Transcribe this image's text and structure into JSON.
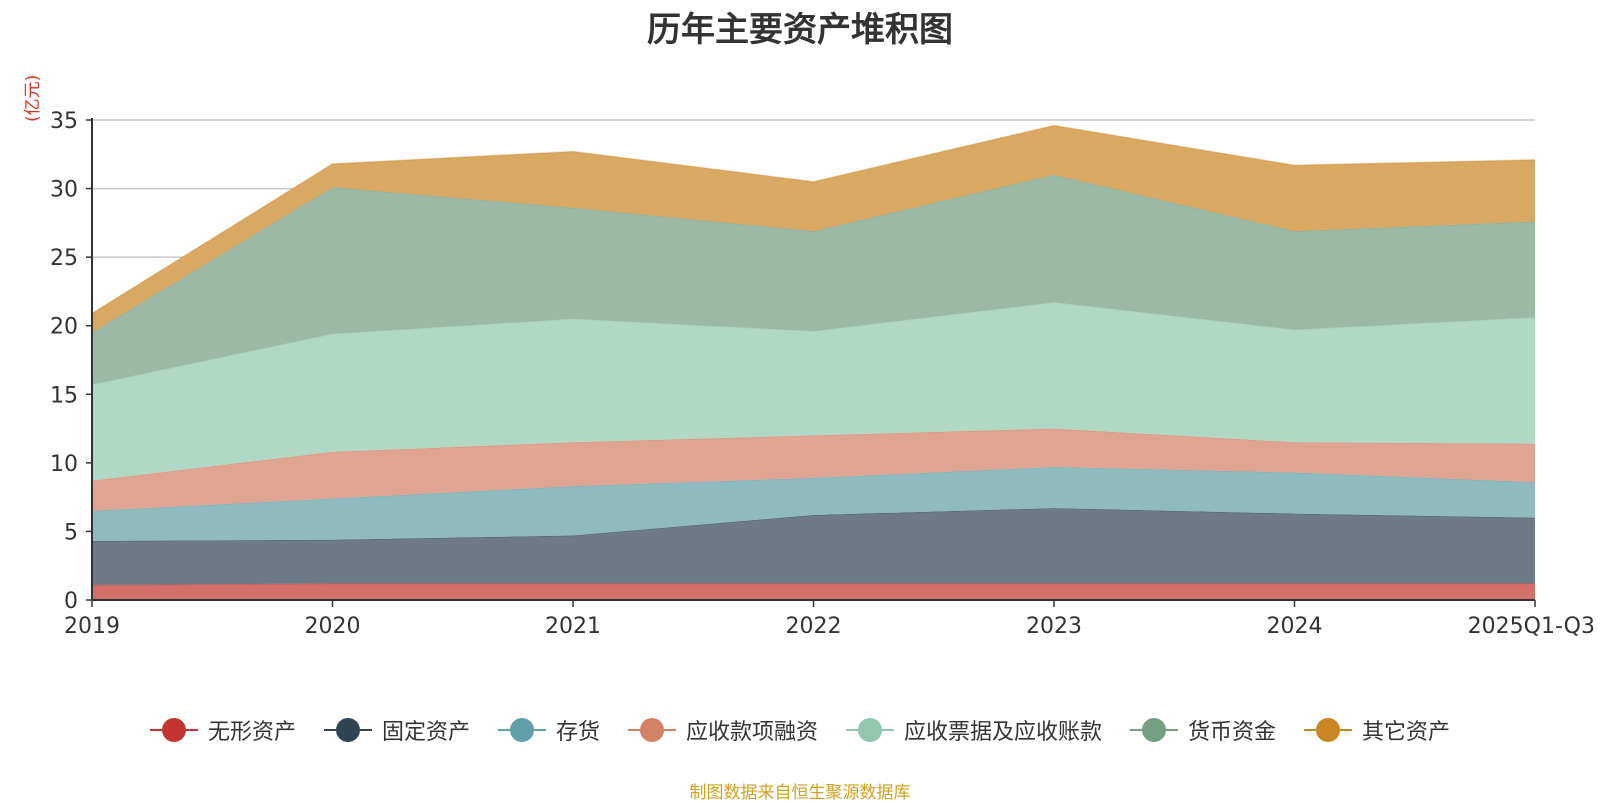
{
  "chart_data": {
    "type": "area",
    "stacked": true,
    "title": "历年主要资产堆积图",
    "ylabel": "(亿元)",
    "xlabel": "",
    "ylim": [
      0,
      35
    ],
    "yticks": [
      0,
      5,
      10,
      15,
      20,
      25,
      30,
      35
    ],
    "categories": [
      "2019",
      "2020",
      "2021",
      "2022",
      "2023",
      "2024",
      "2025Q1-Q3"
    ],
    "series": [
      {
        "name": "无形资产",
        "color": "#c23531",
        "fill": "#d4706b",
        "values": [
          1.1,
          1.2,
          1.2,
          1.2,
          1.2,
          1.2,
          1.2
        ]
      },
      {
        "name": "固定资产",
        "color": "#2f4554",
        "fill": "#6e7b86",
        "values": [
          3.2,
          3.2,
          3.5,
          5.0,
          5.5,
          5.1,
          4.8
        ]
      },
      {
        "name": "存货",
        "color": "#61a0a8",
        "fill": "#8fbbc0",
        "values": [
          2.2,
          3.0,
          3.6,
          2.7,
          3.0,
          3.0,
          2.6
        ]
      },
      {
        "name": "应收款项融资",
        "color": "#d48265",
        "fill": "#e0a592",
        "values": [
          2.2,
          3.4,
          3.2,
          3.1,
          2.8,
          2.2,
          2.8
        ]
      },
      {
        "name": "应收票据及应收账款",
        "color": "#91c7ae",
        "fill": "#b1d8c5",
        "values": [
          7.0,
          8.6,
          9.0,
          7.6,
          9.2,
          8.2,
          9.2
        ]
      },
      {
        "name": "货币资金",
        "color": "#749f83",
        "fill": "#9cb9a6",
        "values": [
          3.8,
          10.7,
          8.1,
          7.3,
          9.3,
          7.2,
          7.0
        ]
      },
      {
        "name": "其它资产",
        "color": "#ca8622",
        "fill": "#d9a862",
        "values": [
          1.4,
          1.7,
          4.1,
          3.6,
          3.6,
          4.8,
          4.5
        ]
      }
    ]
  },
  "source_note": "制图数据来自恒生聚源数据库"
}
